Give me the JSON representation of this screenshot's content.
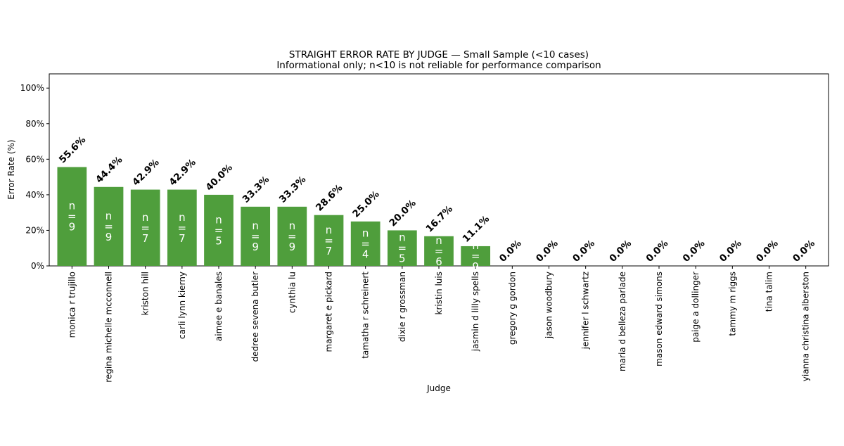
{
  "chart_data": {
    "type": "bar",
    "title": "STRAIGHT ERROR RATE BY JUDGE — Small Sample (<10 cases)",
    "subtitle": "Informational only; n<10 is not reliable for performance comparison",
    "xlabel": "Judge",
    "ylabel": "Error Rate (%)",
    "ylim": [
      0,
      108
    ],
    "yticks": [
      0,
      20,
      40,
      60,
      80,
      100
    ],
    "ytick_labels": [
      "0%",
      "20%",
      "40%",
      "60%",
      "80%",
      "100%"
    ],
    "grid": false,
    "categories": [
      "monica r trujillo",
      "regina michelle mcconnell",
      "kriston hill",
      "carli lynn kierny",
      "aimee e banales",
      "dedree sevena butler",
      "cynthia lu",
      "margaret e pickard",
      "tamatha r schreinert",
      "dixie r grossman",
      "kristin luis",
      "jasmin d lilly spells",
      "gregory g gordon",
      "jason woodbury",
      "jennifer l schwartz",
      "maria d belleza parlade",
      "mason edward simons",
      "paige a dollinger",
      "tammy m riggs",
      "tina talim",
      "yianna christina alberston"
    ],
    "values": [
      55.6,
      44.4,
      42.9,
      42.9,
      40.0,
      33.3,
      33.3,
      28.6,
      25.0,
      20.0,
      16.7,
      11.1,
      0.0,
      0.0,
      0.0,
      0.0,
      0.0,
      0.0,
      0.0,
      0.0,
      0.0
    ],
    "value_labels": [
      "55.6%",
      "44.4%",
      "42.9%",
      "42.9%",
      "40.0%",
      "33.3%",
      "33.3%",
      "28.6%",
      "25.0%",
      "20.0%",
      "16.7%",
      "11.1%",
      "0.0%",
      "0.0%",
      "0.0%",
      "0.0%",
      "0.0%",
      "0.0%",
      "0.0%",
      "0.0%",
      "0.0%"
    ],
    "n_labels": [
      "n\n=\n9",
      "n\n=\n9",
      "n\n=\n7",
      "n\n=\n7",
      "n\n=\n5",
      "n\n=\n9",
      "n\n=\n9",
      "n\n=\n7",
      "n\n=\n4",
      "n\n=\n5",
      "n\n=\n6",
      "n\n=\n9",
      "",
      "",
      "",
      "",
      "",
      "",
      "",
      "",
      ""
    ],
    "bar_color": "#4f9e3c"
  }
}
